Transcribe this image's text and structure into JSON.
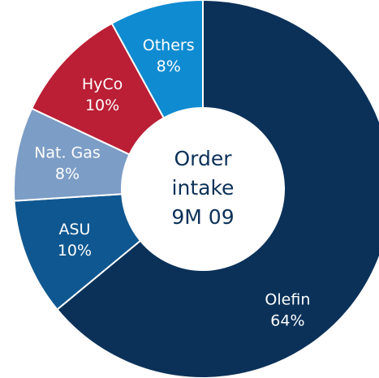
{
  "chart_data": {
    "type": "donut",
    "categories": [
      "Olefin",
      "ASU",
      "Nat. Gas",
      "HyCo",
      "Others"
    ],
    "values": [
      64,
      10,
      8,
      10,
      8
    ],
    "value_labels": [
      "64%",
      "10%",
      "8%",
      "10%",
      "8%"
    ],
    "colors": [
      "#0b3158",
      "#0f5790",
      "#7c9dc5",
      "#bb1f35",
      "#0f8bd1"
    ],
    "center_text": [
      "Order",
      "intake",
      "9M 09"
    ]
  }
}
